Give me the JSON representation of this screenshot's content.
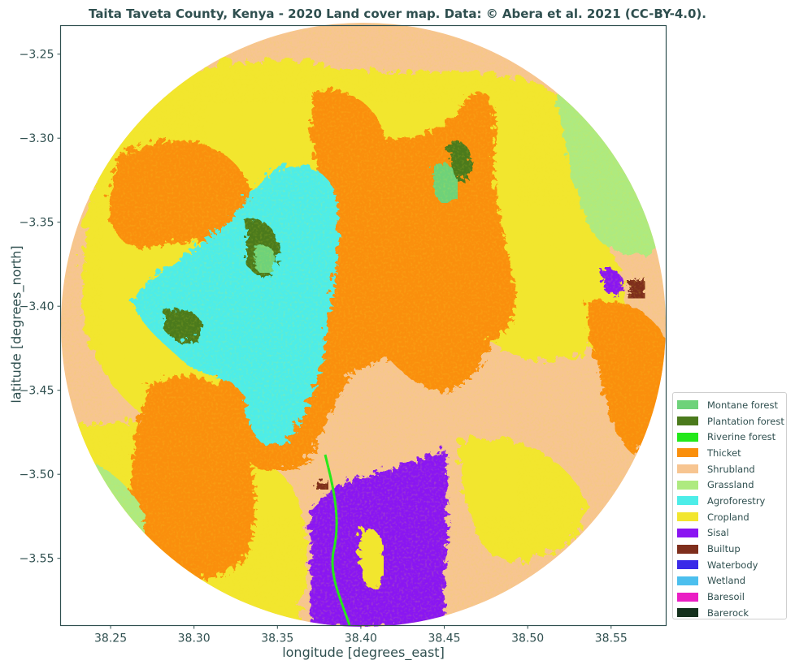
{
  "title": "Taita Taveta County, Kenya - 2020 Land cover map. Data: © Abera et al. 2021 (CC-BY-4.0).",
  "chart_data": {
    "type": "heatmap",
    "title": "Taita Taveta County, Kenya - 2020 Land cover map. Data: © Abera et al. 2021 (CC-BY-4.0).",
    "xlabel": "longitude [degrees_east]",
    "ylabel": "latitude [degrees_north]",
    "xlim": [
      38.22,
      38.583
    ],
    "ylim": [
      -3.59,
      -3.233
    ],
    "x_ticks": [
      38.25,
      38.3,
      38.35,
      38.4,
      38.45,
      38.5,
      38.55
    ],
    "x_tick_labels": [
      "38.25",
      "38.30",
      "38.35",
      "38.40",
      "38.45",
      "38.50",
      "38.55"
    ],
    "y_ticks": [
      -3.25,
      -3.3,
      -3.35,
      -3.4,
      -3.45,
      -3.5,
      -3.55
    ],
    "y_tick_labels": [
      "−3.25",
      "−3.30",
      "−3.35",
      "−3.40",
      "−3.45",
      "−3.50",
      "−3.55"
    ],
    "grid": false,
    "legend_position": "lower-right outside",
    "classes": [
      {
        "name": "Montane forest",
        "color": "#6ed27a"
      },
      {
        "name": "Plantation forest",
        "color": "#4b7a1c"
      },
      {
        "name": "Riverine forest",
        "color": "#22e81a"
      },
      {
        "name": "Thicket",
        "color": "#fa8f0b"
      },
      {
        "name": "Shrubland",
        "color": "#f7c591"
      },
      {
        "name": "Grassland",
        "color": "#aeea80"
      },
      {
        "name": "Agroforestry",
        "color": "#4ded e8"
      },
      {
        "name": "Cropland",
        "color": "#f2e62e"
      },
      {
        "name": "Sisal",
        "color": "#8a14f2"
      },
      {
        "name": "Builtup",
        "color": "#7e2e1c"
      },
      {
        "name": "Waterbody",
        "color": "#3a2ae8"
      },
      {
        "name": "Wetland",
        "color": "#4cbfee"
      },
      {
        "name": "Baresoil",
        "color": "#ea1ec4"
      },
      {
        "name": "Barerock",
        "color": "#14301c"
      }
    ],
    "regions": [
      {
        "class": "Grassland",
        "lon": [
          38.5,
          38.58
        ],
        "lat": [
          -3.37,
          -3.26
        ]
      },
      {
        "class": "Grassland",
        "lon": [
          38.22,
          38.26
        ],
        "lat": [
          -3.56,
          -3.49
        ]
      },
      {
        "class": "Sisal",
        "lon": [
          38.37,
          38.45
        ],
        "lat": [
          -3.59,
          -3.48
        ]
      },
      {
        "class": "Agroforestry",
        "lon": [
          38.29,
          38.39
        ],
        "lat": [
          -3.5,
          -3.31
        ]
      },
      {
        "class": "Shrubland",
        "lon": [
          38.45,
          38.56
        ],
        "lat": [
          -3.59,
          -3.43
        ]
      }
    ]
  }
}
